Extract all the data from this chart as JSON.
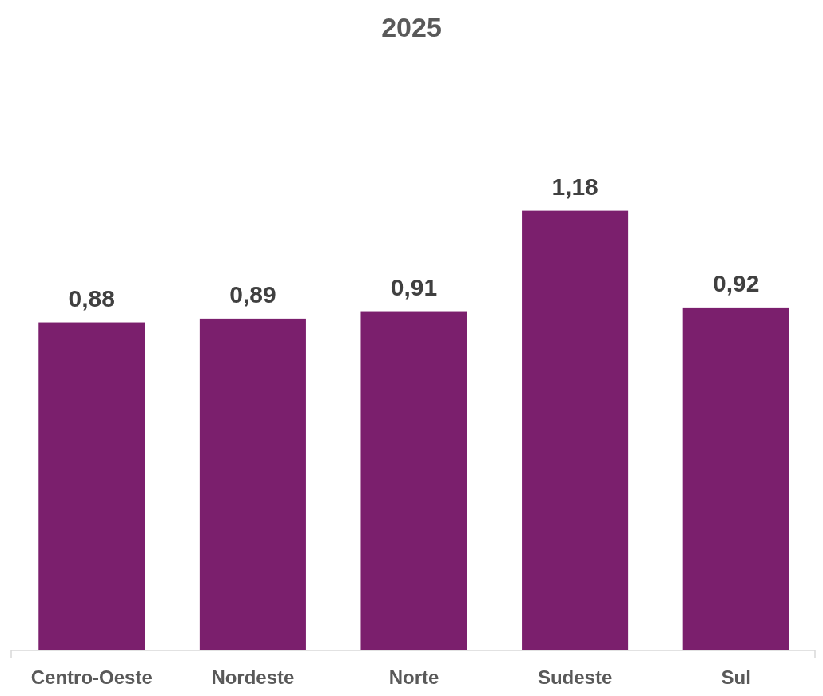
{
  "chart_data": {
    "type": "bar",
    "title": "2025",
    "categories": [
      "Centro-Oeste",
      "Nordeste",
      "Norte",
      "Sudeste",
      "Sul"
    ],
    "values": [
      0.88,
      0.89,
      0.91,
      1.18,
      0.92
    ],
    "value_labels": [
      "0,88",
      "0,89",
      "0,91",
      "1,18",
      "0,92"
    ],
    "color": "#7b1f6d",
    "tick_labels": "x"
  }
}
